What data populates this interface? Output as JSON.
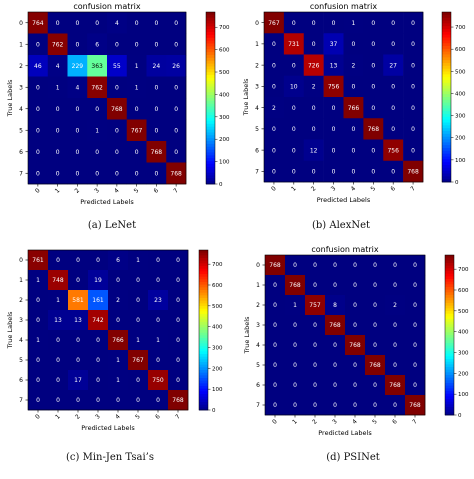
{
  "figure": {
    "colors": {
      "colormap": "jet",
      "cell_text_dark": "#000000",
      "cell_text_light": "#ffffff"
    }
  },
  "chart_data": [
    {
      "type": "heatmap",
      "caption": "(a) LeNet",
      "title": "confusion matrix",
      "xlabel": "Predicted Labels",
      "ylabel": "True Labels",
      "x_ticks": [
        "0",
        "1",
        "2",
        "3",
        "4",
        "5",
        "6",
        "7"
      ],
      "y_ticks": [
        "0",
        "1",
        "2",
        "3",
        "4",
        "5",
        "6",
        "7"
      ],
      "colorbar_ticks": [
        "0",
        "100",
        "200",
        "300",
        "400",
        "500",
        "600",
        "700"
      ],
      "vmin": 0,
      "vmax": 768,
      "matrix": [
        [
          764,
          0,
          0,
          0,
          4,
          0,
          0,
          0
        ],
        [
          0,
          762,
          0,
          6,
          0,
          0,
          0,
          0
        ],
        [
          46,
          4,
          229,
          363,
          55,
          1,
          24,
          26
        ],
        [
          0,
          1,
          4,
          762,
          0,
          1,
          0,
          0
        ],
        [
          0,
          0,
          0,
          0,
          768,
          0,
          0,
          0
        ],
        [
          0,
          0,
          0,
          1,
          0,
          767,
          0,
          0
        ],
        [
          0,
          0,
          0,
          0,
          0,
          0,
          768,
          0
        ],
        [
          0,
          0,
          0,
          0,
          0,
          0,
          0,
          768
        ]
      ]
    },
    {
      "type": "heatmap",
      "caption": "(b) AlexNet",
      "title": "confusion matrix",
      "xlabel": "Predicted Labels",
      "ylabel": "True Labels",
      "x_ticks": [
        "0",
        "1",
        "2",
        "3",
        "4",
        "5",
        "6",
        "7"
      ],
      "y_ticks": [
        "0",
        "1",
        "2",
        "3",
        "4",
        "5",
        "6",
        "7"
      ],
      "colorbar_ticks": [
        "0",
        "100",
        "200",
        "300",
        "400",
        "500",
        "600",
        "700"
      ],
      "vmin": 0,
      "vmax": 768,
      "matrix": [
        [
          767,
          0,
          0,
          0,
          1,
          0,
          0,
          0
        ],
        [
          0,
          731,
          0,
          37,
          0,
          0,
          0,
          0
        ],
        [
          0,
          0,
          726,
          13,
          2,
          0,
          27,
          0
        ],
        [
          0,
          10,
          2,
          756,
          0,
          0,
          0,
          0
        ],
        [
          2,
          0,
          0,
          0,
          766,
          0,
          0,
          0
        ],
        [
          0,
          0,
          0,
          0,
          0,
          768,
          0,
          0
        ],
        [
          0,
          0,
          12,
          0,
          0,
          0,
          756,
          0
        ],
        [
          0,
          0,
          0,
          0,
          0,
          0,
          0,
          768
        ]
      ]
    },
    {
      "type": "heatmap",
      "caption": "(c) Min-Jen Tsai’s",
      "title": "confusion matrix",
      "xlabel": "Predicted Labels",
      "ylabel": "True Labels",
      "x_ticks": [
        "0",
        "1",
        "2",
        "3",
        "4",
        "5",
        "6",
        "7"
      ],
      "y_ticks": [
        "0",
        "1",
        "2",
        "3",
        "4",
        "5",
        "6",
        "7"
      ],
      "colorbar_ticks": [
        "0",
        "100",
        "200",
        "300",
        "400",
        "500",
        "600",
        "700"
      ],
      "vmin": 0,
      "vmax": 768,
      "matrix": [
        [
          761,
          0,
          0,
          0,
          6,
          1,
          0,
          0
        ],
        [
          1,
          748,
          0,
          19,
          0,
          0,
          0,
          0
        ],
        [
          0,
          1,
          581,
          161,
          2,
          0,
          23,
          0
        ],
        [
          0,
          13,
          13,
          742,
          0,
          0,
          0,
          0
        ],
        [
          1,
          0,
          0,
          0,
          766,
          1,
          1,
          0
        ],
        [
          0,
          0,
          0,
          0,
          1,
          767,
          0,
          0
        ],
        [
          0,
          0,
          17,
          0,
          1,
          0,
          750,
          0
        ],
        [
          0,
          0,
          0,
          0,
          0,
          0,
          0,
          768
        ]
      ]
    },
    {
      "type": "heatmap",
      "caption": "(d) PSINet",
      "title": "confusion matrix",
      "xlabel": "Predicted Labels",
      "ylabel": "True Labels",
      "x_ticks": [
        "0",
        "1",
        "2",
        "3",
        "4",
        "5",
        "6",
        "7"
      ],
      "y_ticks": [
        "0",
        "1",
        "2",
        "3",
        "4",
        "5",
        "6",
        "7"
      ],
      "colorbar_ticks": [
        "0",
        "100",
        "200",
        "300",
        "400",
        "500",
        "600",
        "700"
      ],
      "vmin": 0,
      "vmax": 768,
      "matrix": [
        [
          768,
          0,
          0,
          0,
          0,
          0,
          0,
          0
        ],
        [
          0,
          768,
          0,
          0,
          0,
          0,
          0,
          0
        ],
        [
          0,
          1,
          757,
          8,
          0,
          0,
          2,
          0
        ],
        [
          0,
          0,
          0,
          768,
          0,
          0,
          0,
          0
        ],
        [
          0,
          0,
          0,
          0,
          768,
          0,
          0,
          0
        ],
        [
          0,
          0,
          0,
          0,
          0,
          768,
          0,
          0
        ],
        [
          0,
          0,
          0,
          0,
          0,
          0,
          768,
          0
        ],
        [
          0,
          0,
          0,
          0,
          0,
          0,
          0,
          768
        ]
      ]
    }
  ]
}
